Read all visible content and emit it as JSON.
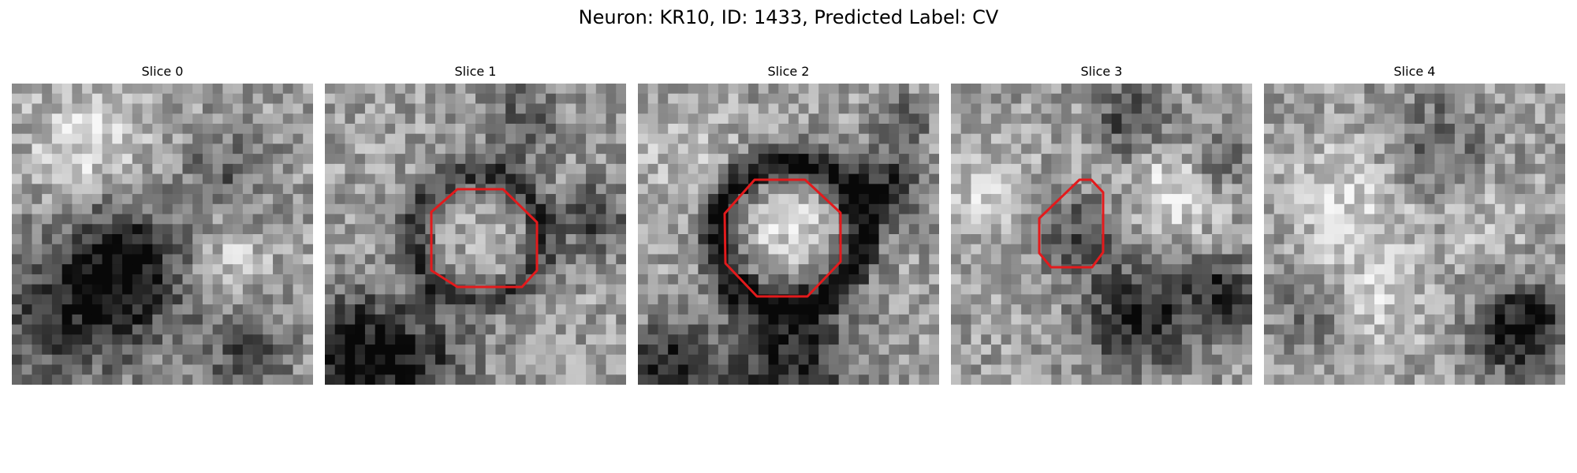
{
  "figure": {
    "title": "Neuron: KR10, ID: 1433, Predicted Label: CV"
  },
  "outline_color": "#e31a1c",
  "slices": [
    {
      "title": "Slice 0",
      "roi_outline": false,
      "seed": 11
    },
    {
      "title": "Slice 1",
      "roi_outline": true,
      "seed": 23
    },
    {
      "title": "Slice 2",
      "roi_outline": true,
      "seed": 37
    },
    {
      "title": "Slice 3",
      "roi_outline": true,
      "seed": 53
    },
    {
      "title": "Slice 4",
      "roi_outline": false,
      "seed": 71
    }
  ]
}
